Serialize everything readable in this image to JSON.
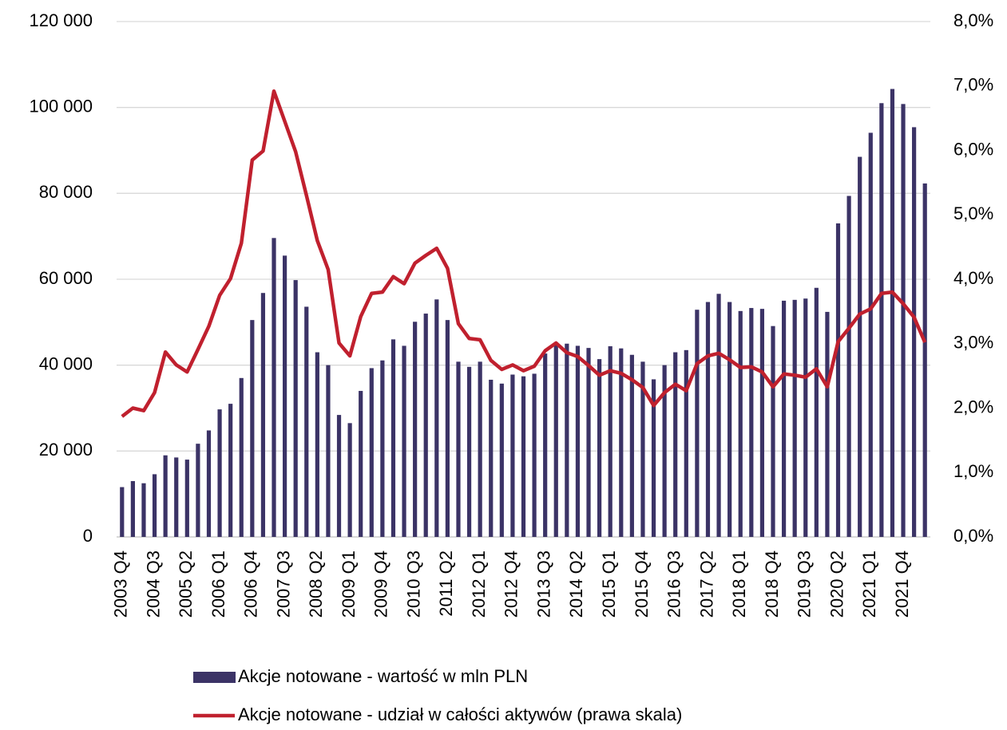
{
  "chart_data": {
    "type": "bar_line",
    "categories": [
      "2003 Q4",
      null,
      null,
      "2004 Q3",
      null,
      null,
      "2005 Q2",
      null,
      null,
      "2006 Q1",
      null,
      null,
      "2006 Q4",
      null,
      null,
      "2007 Q3",
      null,
      null,
      "2008 Q2",
      null,
      null,
      "2009 Q1",
      null,
      null,
      "2009 Q4",
      null,
      null,
      "2010 Q3",
      null,
      null,
      "2011 Q2",
      null,
      null,
      "2012 Q1",
      null,
      null,
      "2012 Q4",
      null,
      null,
      "2013 Q3",
      null,
      null,
      "2014 Q2",
      null,
      null,
      "2015 Q1",
      null,
      null,
      "2015 Q4",
      null,
      null,
      "2016 Q3",
      null,
      null,
      "2017 Q2",
      null,
      null,
      "2018 Q1",
      null,
      null,
      "2018 Q4",
      null,
      null,
      "2019 Q3",
      null,
      null,
      "2020 Q2",
      null,
      null,
      "2021 Q1",
      null,
      null,
      "2021 Q4",
      null,
      null
    ],
    "series": [
      {
        "name": "Akcje notowane  - wartość w mln PLN",
        "type": "bar",
        "color": "#3b3366",
        "values": [
          11600,
          13000,
          12500,
          14600,
          19000,
          18500,
          18000,
          21700,
          24800,
          29700,
          31000,
          37000,
          50500,
          56800,
          69600,
          65500,
          59800,
          53600,
          43000,
          40000,
          28400,
          26500,
          34000,
          39300,
          41100,
          46000,
          44500,
          50100,
          52000,
          55300,
          50500,
          40800,
          39600,
          40800,
          36600,
          35700,
          37800,
          37400,
          38000,
          42700,
          45000,
          45000,
          44500,
          44000,
          41400,
          44400,
          43900,
          42400,
          40800,
          36700,
          40000,
          43000,
          43500,
          52900,
          54700,
          56600,
          54700,
          52600,
          53300,
          53100,
          49100,
          55000,
          55200,
          55500,
          58000,
          52400,
          73000,
          79400,
          88500,
          94100,
          101000,
          104300,
          100800,
          95400,
          82300
        ]
      },
      {
        "name": "Akcje notowane - udział w całości aktywów (prawa skala)",
        "type": "line",
        "axis": "y2",
        "color": "#c0202e",
        "values": [
          1.87,
          2.0,
          1.96,
          2.24,
          2.87,
          2.67,
          2.56,
          2.91,
          3.27,
          3.75,
          4.01,
          4.56,
          5.85,
          5.99,
          6.92,
          6.45,
          5.98,
          5.3,
          4.6,
          4.15,
          3.01,
          2.81,
          3.42,
          3.78,
          3.8,
          4.04,
          3.93,
          4.25,
          4.37,
          4.48,
          4.17,
          3.31,
          3.08,
          3.06,
          2.74,
          2.6,
          2.67,
          2.58,
          2.65,
          2.89,
          3.01,
          2.86,
          2.8,
          2.66,
          2.51,
          2.58,
          2.54,
          2.44,
          2.32,
          2.04,
          2.24,
          2.37,
          2.27,
          2.69,
          2.81,
          2.85,
          2.75,
          2.63,
          2.64,
          2.56,
          2.33,
          2.53,
          2.51,
          2.48,
          2.61,
          2.33,
          3.03,
          3.24,
          3.46,
          3.54,
          3.78,
          3.8,
          3.62,
          3.41,
          3.02
        ]
      }
    ],
    "ylim": [
      0,
      120000
    ],
    "yticks": [
      0,
      {
        "value": 20000,
        "label": "20 000"
      },
      {
        "value": 40000,
        "label": "40 000"
      },
      {
        "value": 60000,
        "label": "60 000"
      },
      {
        "value": 80000,
        "label": "80 000"
      },
      {
        "value": 100000,
        "label": "100 000"
      },
      {
        "value": 120000,
        "label": "120 000"
      }
    ],
    "y2lim": [
      0,
      8
    ],
    "y2ticks": [
      {
        "value": 0,
        "label": "0,0%"
      },
      {
        "value": 1,
        "label": "1,0%"
      },
      {
        "value": 2,
        "label": "2,0%"
      },
      {
        "value": 3,
        "label": "3,0%"
      },
      {
        "value": 4,
        "label": "4,0%"
      },
      {
        "value": 5,
        "label": "5,0%"
      },
      {
        "value": 6,
        "label": "6,0%"
      },
      {
        "value": 7,
        "label": "7,0%"
      },
      {
        "value": 8,
        "label": "8,0%"
      }
    ],
    "grid": true,
    "legend": "bottom"
  }
}
